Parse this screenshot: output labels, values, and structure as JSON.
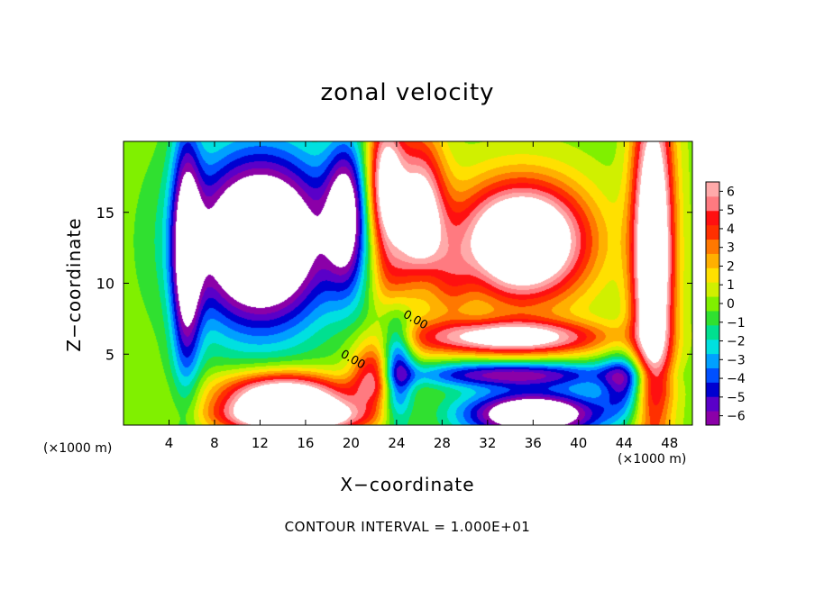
{
  "chart_data": {
    "type": "heatmap",
    "title": "zonal velocity",
    "xlabel": "X−coordinate",
    "ylabel": "Z−coordinate",
    "x_scale_label": "(×1000 m)",
    "y_scale_label": "(×1000 m)",
    "footnote": "CONTOUR INTERVAL = 1.000E+01",
    "xlim": [
      0,
      50
    ],
    "ylim": [
      0,
      20
    ],
    "xticks": [
      4,
      8,
      12,
      16,
      20,
      24,
      28,
      32,
      36,
      40,
      44,
      48
    ],
    "xtick_labels": [
      "4",
      "8",
      "12",
      "16",
      "20",
      "24",
      "28",
      "32",
      "36",
      "40",
      "44",
      "48"
    ],
    "yticks": [
      5,
      10,
      15
    ],
    "ytick_labels": [
      "5",
      "10",
      "15"
    ],
    "colorbar": {
      "vmin": -6.5,
      "vmax": 6.5,
      "ticks": [
        6,
        5,
        4,
        3,
        2,
        1,
        0,
        -1,
        -2,
        -3,
        -4,
        -5,
        -6
      ],
      "tick_labels": [
        "6",
        "5",
        "4",
        "3",
        "2",
        "1",
        "0",
        "−1",
        "−2",
        "−3",
        "−4",
        "−5",
        "−6"
      ],
      "colors": [
        "#8b00a8",
        "#5a00c8",
        "#0000d0",
        "#0050ff",
        "#00a0ff",
        "#00e0e0",
        "#00e090",
        "#30e030",
        "#80f000",
        "#d0f000",
        "#ffe000",
        "#ffb000",
        "#ff7800",
        "#ff3000",
        "#ff1010",
        "#ff7a80",
        "#ffaaaa"
      ]
    },
    "contour_labels": [
      {
        "text": "0.00",
        "x": 20,
        "y": 4.4
      },
      {
        "text": "0.00",
        "x": 25.5,
        "y": 7.2
      }
    ],
    "grid": false,
    "legend": "colorbar-right",
    "white_regions_note": "values outside ±6 drawn white"
  }
}
